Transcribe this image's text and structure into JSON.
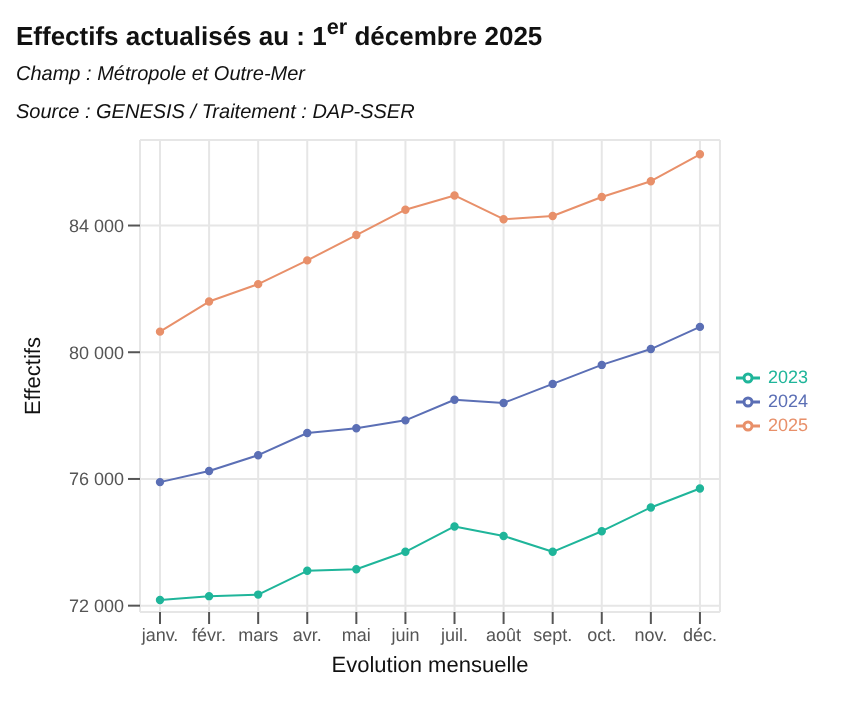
{
  "chart_data": {
    "type": "line",
    "title": "Effectifs actualisés au : 1$^{er}$ décembre 2025",
    "subtitle": "Champ : Métropole et Outre-Mer",
    "annotations": [
      "Source : GENESIS / Traitement : DAP-SSER"
    ],
    "xlabel": "Evolution mensuelle",
    "ylabel": "Effectifs",
    "categories": [
      "janv.",
      "févr.",
      "mars",
      "avr.",
      "mai",
      "juin",
      "juil.",
      "août",
      "sept.",
      "oct.",
      "nov.",
      "déc."
    ],
    "series": [
      {
        "name": "2023",
        "color": "#1fb59a",
        "values": [
          72180,
          72300,
          72350,
          73100,
          73150,
          73700,
          74500,
          74200,
          73700,
          74350,
          75100,
          75700
        ]
      },
      {
        "name": "2024",
        "color": "#5b6fb5",
        "values": [
          75900,
          76250,
          76750,
          77450,
          77600,
          77850,
          78500,
          78400,
          79000,
          79600,
          80100,
          80800
        ]
      },
      {
        "name": "2025",
        "color": "#e8906a",
        "values": [
          80650,
          81600,
          82150,
          82900,
          83700,
          84500,
          84950,
          84200,
          84300,
          84900,
          85400,
          86250
        ]
      }
    ],
    "ylim": [
      71800,
      86700
    ],
    "yticks": [
      {
        "value": 72000,
        "label": "72 000"
      },
      {
        "value": 76000,
        "label": "76 000"
      },
      {
        "value": 80000,
        "label": "80 000"
      },
      {
        "value": 84000,
        "label": "84 000"
      }
    ],
    "grid": true,
    "legend": "right",
    "marker": "circle",
    "line_style": "solid"
  }
}
